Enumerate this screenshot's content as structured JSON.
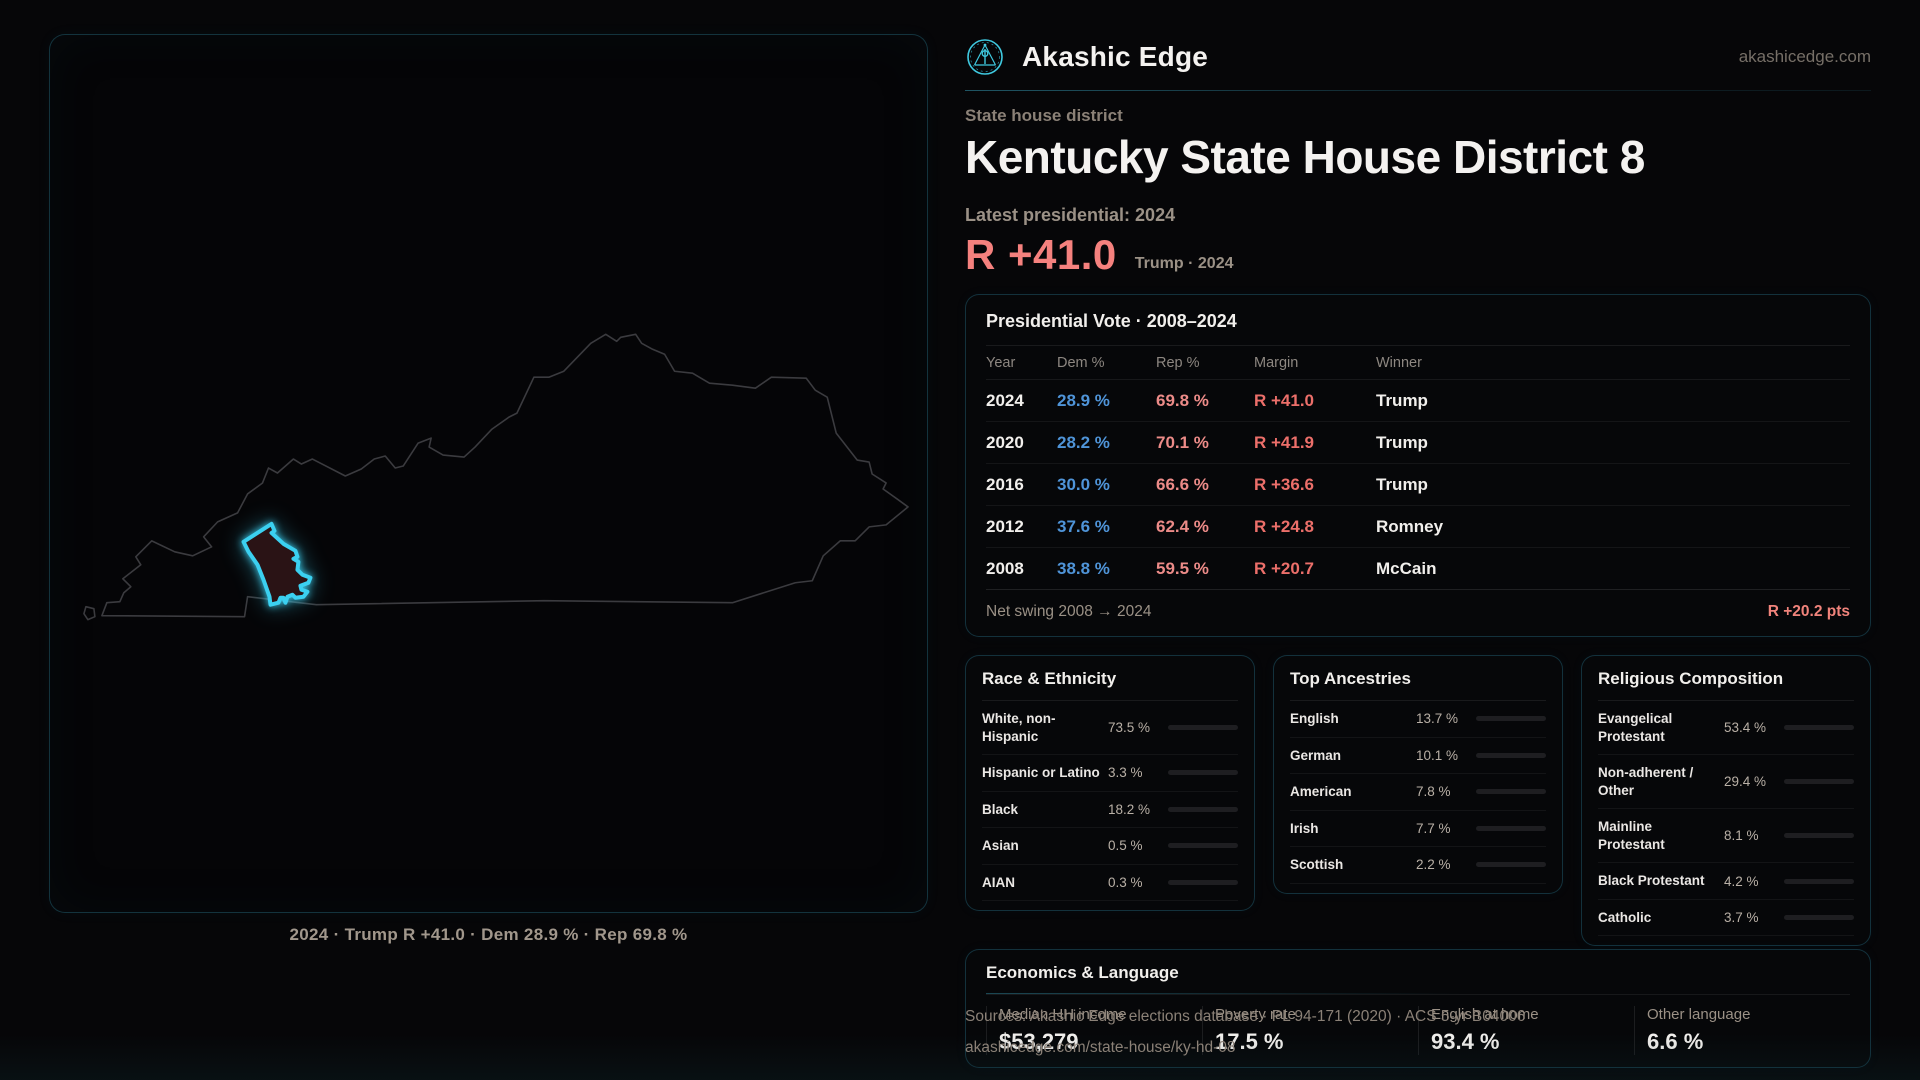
{
  "brand": {
    "name": "Akashic Edge",
    "domain": "akashicedge.com"
  },
  "header": {
    "kicker": "State house district",
    "title": "Kentucky State House District 8",
    "latest": "Latest presidential: 2024",
    "margin_value": "R +41.0",
    "margin_context": "Trump · 2024"
  },
  "map": {
    "caption": "2024 · Trump R +41.0 · Dem 28.9 % · Rep 69.8 %",
    "district_color": "#3bd0f0",
    "state_outline_color": "#3b3b3f"
  },
  "presidential": {
    "title": "Presidential Vote · 2008–2024",
    "columns": [
      "Year",
      "Dem %",
      "Rep %",
      "Margin",
      "Winner"
    ],
    "rows": [
      {
        "year": "2024",
        "dem": "28.9 %",
        "rep": "69.8 %",
        "margin": "R +41.0",
        "winner": "Trump"
      },
      {
        "year": "2020",
        "dem": "28.2 %",
        "rep": "70.1 %",
        "margin": "R +41.9",
        "winner": "Trump"
      },
      {
        "year": "2016",
        "dem": "30.0 %",
        "rep": "66.6 %",
        "margin": "R +36.6",
        "winner": "Trump"
      },
      {
        "year": "2012",
        "dem": "37.6 %",
        "rep": "62.4 %",
        "margin": "R +24.8",
        "winner": "Romney"
      },
      {
        "year": "2008",
        "dem": "38.8 %",
        "rep": "59.5 %",
        "margin": "R +20.7",
        "winner": "McCain"
      }
    ],
    "net_swing_label": "Net swing 2008 → 2024",
    "net_swing_value": "R +20.2 pts"
  },
  "demographics": {
    "race": {
      "title": "Race & Ethnicity",
      "rows": [
        {
          "label": "White, non-Hispanic",
          "value": "73.5 %",
          "pct": 73.5,
          "color": "#9db1cf"
        },
        {
          "label": "Hispanic or Latino",
          "value": "3.3 %",
          "pct": 3.3,
          "color": "#e9a63b"
        },
        {
          "label": "Black",
          "value": "18.2 %",
          "pct": 18.2,
          "color": "#9c8df2"
        },
        {
          "label": "Asian",
          "value": "0.5 %",
          "pct": 0.5,
          "color": "#34c3a4"
        },
        {
          "label": "AIAN",
          "value": "0.3 %",
          "pct": 0.3,
          "color": "#d9853a"
        }
      ]
    },
    "ancestries": {
      "title": "Top Ancestries",
      "rows": [
        {
          "label": "English",
          "value": "13.7 %",
          "pct": 13.7,
          "color": "#9db1cf"
        },
        {
          "label": "German",
          "value": "10.1 %",
          "pct": 10.1,
          "color": "#9db1cf"
        },
        {
          "label": "American",
          "value": "7.8 %",
          "pct": 7.8,
          "color": "#9db1cf"
        },
        {
          "label": "Irish",
          "value": "7.7 %",
          "pct": 7.7,
          "color": "#9db1cf"
        },
        {
          "label": "Scottish",
          "value": "2.2 %",
          "pct": 2.2,
          "color": "#9db1cf"
        }
      ]
    },
    "religion": {
      "title": "Religious Composition",
      "rows": [
        {
          "label": "Evangelical Protestant",
          "value": "53.4 %",
          "pct": 53.4,
          "color": "#df6b6b"
        },
        {
          "label": "Non-adherent / Other",
          "value": "29.4 %",
          "pct": 29.4,
          "color": "#6f7685"
        },
        {
          "label": "Mainline Protestant",
          "value": "8.1 %",
          "pct": 8.1,
          "color": "#4f90e8"
        },
        {
          "label": "Black Protestant",
          "value": "4.2 %",
          "pct": 4.2,
          "color": "#9c8df2"
        },
        {
          "label": "Catholic",
          "value": "3.7 %",
          "pct": 3.7,
          "color": "#e9c33b"
        }
      ]
    }
  },
  "economics": {
    "title": "Economics & Language",
    "stats": [
      {
        "label": "Median HH income",
        "value": "$53,279"
      },
      {
        "label": "Poverty rate",
        "value": "17.5 %"
      },
      {
        "label": "English at home",
        "value": "93.4 %"
      },
      {
        "label": "Other language",
        "value": "6.6 %"
      }
    ]
  },
  "sources": {
    "line1": "Sources: Akashic Edge elections database · PL 94-171 (2020) · ACS 5-yr B04006",
    "line2": "akashicedge.com/state-house/ky-hd-08"
  }
}
